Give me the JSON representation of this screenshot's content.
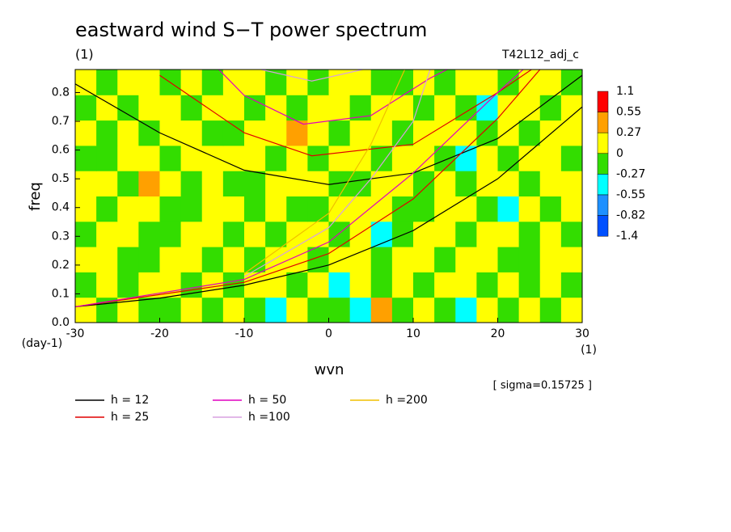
{
  "chart_data": {
    "type": "contour",
    "title": "eastward wind S−T power spectrum",
    "title_unit": "(1)",
    "case_label": "T42L12_adj_c",
    "ylabel": "freq",
    "y_unit": "(day-1)",
    "xlabel": "wvn",
    "x_unit": "(1)",
    "note": "[ sigma=0.15725 ]",
    "xlim": [
      -30,
      30
    ],
    "ylim": [
      0,
      0.88
    ],
    "xticks": [
      -30,
      -20,
      -10,
      0,
      10,
      20,
      30
    ],
    "yticks": [
      {
        "value": 0,
        "label": "0.0"
      },
      0.1,
      0.2,
      0.3,
      0.4,
      0.5,
      0.6,
      0.7,
      0.8
    ],
    "levels": [
      1.1,
      0.55,
      0.27,
      0,
      -0.27,
      -0.55,
      -0.82,
      -1.4
    ],
    "level_colors": [
      "#ff0000",
      "#ffa000",
      "#ffff00",
      "#33dd00",
      "#00ffff",
      "#1e90ff",
      "#0050ff"
    ],
    "field": [
      [
        0.1,
        -0.1,
        0.1,
        -0.1,
        -0.1,
        0.1,
        -0.1,
        0.1,
        -0.1,
        -0.4,
        0.1,
        -0.1,
        -0.1,
        -0.4,
        0.4,
        -0.1,
        0.1,
        -0.1,
        -0.4,
        0.1,
        -0.1,
        0.1,
        -0.1,
        0.1
      ],
      [
        -0.1,
        0.1,
        -0.1,
        0.1,
        0.1,
        -0.1,
        0.1,
        -0.1,
        0.1,
        0.1,
        -0.1,
        0.1,
        -0.4,
        0.1,
        -0.1,
        0.1,
        -0.1,
        0.1,
        0.1,
        -0.1,
        0.1,
        -0.1,
        0.1,
        -0.1
      ],
      [
        0.1,
        0.1,
        -0.1,
        -0.1,
        0.1,
        0.1,
        -0.1,
        0.1,
        -0.1,
        0.1,
        0.1,
        -0.1,
        0.1,
        0.1,
        -0.1,
        0.1,
        0.1,
        -0.1,
        0.1,
        0.1,
        -0.1,
        -0.1,
        0.1,
        0.1
      ],
      [
        -0.1,
        0.1,
        0.1,
        -0.1,
        -0.1,
        0.1,
        0.1,
        -0.1,
        0.1,
        -0.1,
        0.1,
        0.1,
        -0.1,
        0.1,
        -0.4,
        -0.1,
        0.1,
        0.1,
        -0.1,
        0.1,
        0.1,
        -0.1,
        0.1,
        -0.1
      ],
      [
        0.1,
        -0.1,
        0.1,
        0.1,
        -0.1,
        -0.1,
        0.1,
        0.1,
        -0.1,
        0.1,
        -0.1,
        -0.1,
        0.1,
        0.1,
        0.1,
        -0.1,
        -0.1,
        0.1,
        0.1,
        -0.1,
        -0.4,
        0.1,
        -0.1,
        0.1
      ],
      [
        0.1,
        0.1,
        -0.1,
        0.4,
        0.1,
        -0.1,
        0.1,
        -0.1,
        -0.1,
        0.1,
        0.1,
        0.1,
        -0.1,
        -0.1,
        0.1,
        0.1,
        -0.1,
        0.1,
        -0.1,
        0.1,
        0.1,
        -0.1,
        0.1,
        0.1
      ],
      [
        -0.1,
        -0.1,
        0.1,
        0.1,
        -0.1,
        0.1,
        0.1,
        0.1,
        0.1,
        -0.1,
        0.1,
        -0.1,
        0.1,
        0.1,
        -0.1,
        0.1,
        0.1,
        -0.1,
        -0.4,
        0.1,
        -0.1,
        0.1,
        0.1,
        -0.1
      ],
      [
        0.1,
        -0.1,
        0.1,
        -0.1,
        0.1,
        0.1,
        -0.1,
        -0.1,
        0.1,
        0.1,
        0.4,
        0.1,
        -0.1,
        0.1,
        0.1,
        -0.1,
        0.1,
        0.1,
        0.1,
        -0.1,
        0.1,
        -0.1,
        0.1,
        0.1
      ],
      [
        -0.1,
        0.1,
        -0.1,
        0.1,
        0.1,
        -0.1,
        0.1,
        0.1,
        -0.1,
        0.1,
        -0.1,
        0.1,
        0.1,
        -0.1,
        0.1,
        0.1,
        -0.1,
        0.1,
        -0.1,
        -0.4,
        0.1,
        0.1,
        -0.1,
        0.1
      ],
      [
        0.1,
        -0.1,
        0.1,
        0.1,
        -0.1,
        0.1,
        -0.1,
        0.1,
        0.1,
        -0.1,
        0.1,
        -0.1,
        0.1,
        0.1,
        -0.1,
        -0.1,
        0.1,
        -0.1,
        0.1,
        0.1,
        -0.1,
        0.1,
        0.1,
        -0.1
      ]
    ],
    "curves": [
      {
        "name": "h = 12",
        "color": "#000000",
        "branches": [
          {
            "x": [
              -30,
              -20,
              -10,
              0,
              10,
              20,
              30
            ],
            "values": [
              0.055,
              0.085,
              0.13,
              0.2,
              0.32,
              0.5,
              0.75
            ]
          },
          {
            "x": [
              -30,
              -20,
              -10,
              0,
              10,
              20,
              30
            ],
            "values": [
              0.83,
              0.66,
              0.53,
              0.48,
              0.52,
              0.64,
              0.86
            ]
          }
        ]
      },
      {
        "name": "h = 25",
        "color": "#e00000",
        "branches": [
          {
            "x": [
              -30,
              -10,
              0,
              10,
              20,
              25
            ],
            "values": [
              0.055,
              0.14,
              0.24,
              0.43,
              0.71,
              0.88
            ]
          },
          {
            "x": [
              -20,
              -10,
              -2,
              10,
              20,
              24
            ],
            "values": [
              0.86,
              0.66,
              0.58,
              0.62,
              0.8,
              0.88
            ]
          }
        ]
      },
      {
        "name": "h = 50",
        "color": "#e000c0",
        "branches": [
          {
            "x": [
              -30,
              -10,
              0,
              10,
              20,
              23
            ],
            "values": [
              0.055,
              0.15,
              0.28,
              0.52,
              0.8,
              0.88
            ]
          },
          {
            "x": [
              -13,
              -10,
              -3,
              5,
              12,
              14
            ],
            "values": [
              0.88,
              0.79,
              0.69,
              0.72,
              0.85,
              0.88
            ]
          }
        ]
      },
      {
        "name": "h =100",
        "color": "#d8a0e0",
        "branches": [
          {
            "x": [
              -10,
              0,
              5,
              10,
              12
            ],
            "values": [
              0.16,
              0.33,
              0.5,
              0.7,
              0.88
            ]
          },
          {
            "x": [
              -8,
              -2,
              4
            ],
            "values": [
              0.88,
              0.84,
              0.88
            ]
          }
        ]
      },
      {
        "name": "h =200",
        "color": "#f0c000",
        "branches": [
          {
            "x": [
              -10,
              0,
              5,
              9
            ],
            "values": [
              0.17,
              0.38,
              0.62,
              0.88
            ]
          }
        ]
      }
    ]
  }
}
